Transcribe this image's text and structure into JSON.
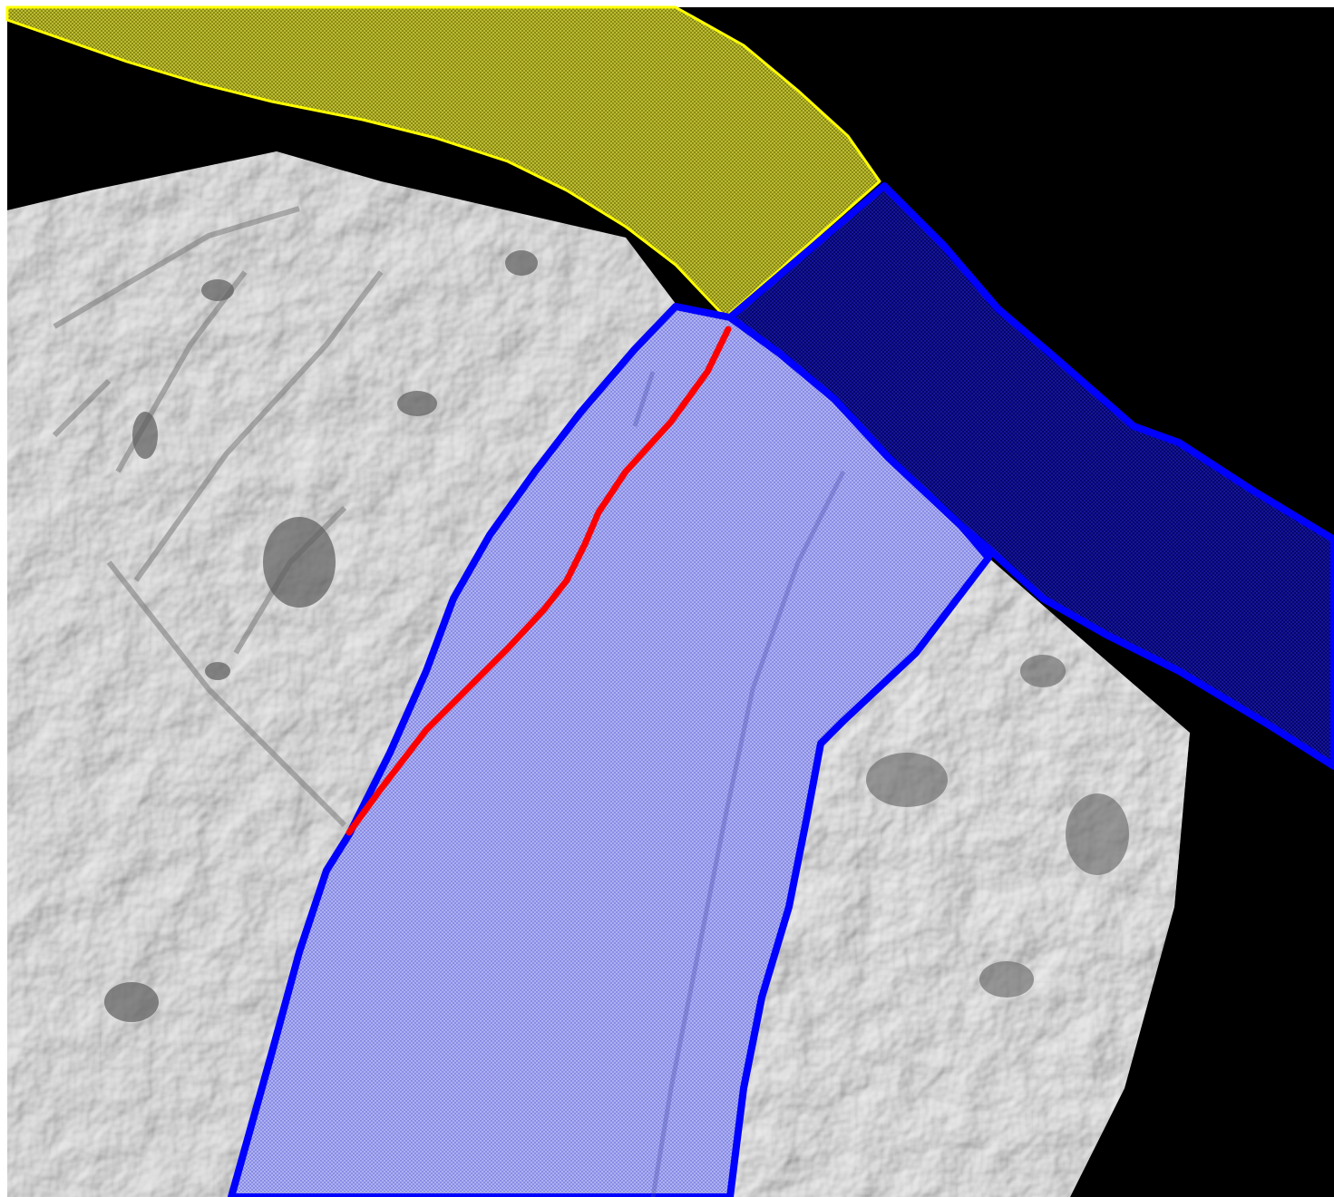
{
  "map": {
    "background_color": "#000000",
    "frame_color": "#ffffff",
    "layers": [
      {
        "name": "terrain-surface",
        "kind": "shaded-relief",
        "color": "#b8b8b8"
      },
      {
        "name": "upstream-channel-polygon",
        "kind": "hatched-polygon",
        "fill": "#8a8a12",
        "outline": "#ffff00"
      },
      {
        "name": "light-river-polygon",
        "kind": "hatched-polygon",
        "fill": "#8b8fe8",
        "outline": "#0000ff"
      },
      {
        "name": "dark-river-polygon",
        "kind": "hatched-polygon",
        "fill": "#000070",
        "outline": "#0000ff"
      },
      {
        "name": "red-bank-line",
        "kind": "polyline",
        "color": "#ff0000"
      }
    ]
  }
}
